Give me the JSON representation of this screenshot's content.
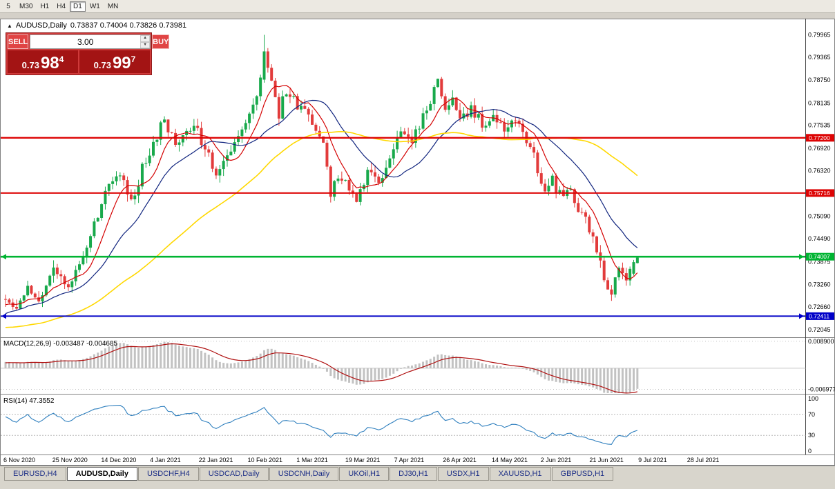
{
  "toolbar": {
    "timeframes": [
      "5",
      "M30",
      "H1",
      "H4",
      "D1",
      "W1",
      "MN"
    ],
    "active_timeframe": "D1"
  },
  "chart": {
    "title": {
      "icon_glyph": "▲",
      "symbol": "AUDUSD,Daily",
      "ohlc": "0.73837 0.74004 0.73826 0.73981"
    },
    "trade_panel": {
      "sell_label": "SELL",
      "buy_label": "BUY",
      "volume": "3.00",
      "spinner_up_glyph": "▲",
      "spinner_down_glyph": "▼",
      "sell_price": {
        "base": "0.73",
        "big": "98",
        "pip": "4"
      },
      "buy_price": {
        "base": "0.73",
        "big": "99",
        "pip": "7"
      }
    },
    "y_axis_labels": [
      "0.79965",
      "0.79365",
      "0.78750",
      "0.78135",
      "0.77535",
      "0.76920",
      "0.76320",
      "0.75705",
      "0.75090",
      "0.74490",
      "0.73875",
      "0.73260",
      "0.72660",
      "0.72045"
    ],
    "x_axis_labels": [
      "6 Nov 2020",
      "25 Nov 2020",
      "14 Dec 2020",
      "4 Jan 2021",
      "22 Jan 2021",
      "10 Feb 2021",
      "1 Mar 2021",
      "19 Mar 2021",
      "7 Apr 2021",
      "26 Apr 2021",
      "14 May 2021",
      "2 Jun 2021",
      "21 Jun 2021",
      "9 Jul 2021",
      "28 Jul 2021"
    ],
    "levels": [
      {
        "label": "0.77200",
        "price": 0.772,
        "color": "#dd0404",
        "width": 2.4,
        "arrows": false
      },
      {
        "label": "0.75716",
        "price": 0.75716,
        "color": "#dd0404",
        "width": 2,
        "arrows": false
      },
      {
        "label": "0.74007",
        "price": 0.74007,
        "color": "#00b432",
        "width": 2.6,
        "arrows": true
      },
      {
        "label": "0.72411",
        "price": 0.72411,
        "color": "#0000c8",
        "width": 2,
        "arrows": true
      }
    ],
    "chart_data": {
      "type": "candlestick",
      "symbol": "AUDUSD",
      "timeframe": "Daily",
      "bar_count": 172,
      "ylim": [
        0.7182,
        0.804
      ],
      "ohlc_current": {
        "open": 0.73837,
        "high": 0.74004,
        "low": 0.73826,
        "close": 0.73981
      },
      "up_color": "#18a94b",
      "down_color": "#e23b3b",
      "prehistory_anchors": [
        [
          -60,
          0.726
        ],
        [
          -45,
          0.72
        ],
        [
          -30,
          0.716
        ],
        [
          -15,
          0.723
        ],
        [
          -1,
          0.7278
        ]
      ],
      "price_anchors": [
        [
          0,
          0.729
        ],
        [
          3,
          0.7262
        ],
        [
          6,
          0.7312
        ],
        [
          9,
          0.728
        ],
        [
          13,
          0.7368
        ],
        [
          17,
          0.7332
        ],
        [
          21,
          0.7405
        ],
        [
          25,
          0.752
        ],
        [
          28,
          0.759
        ],
        [
          31,
          0.7625
        ],
        [
          34,
          0.7538
        ],
        [
          37,
          0.764
        ],
        [
          40,
          0.7712
        ],
        [
          43,
          0.777
        ],
        [
          46,
          0.7706
        ],
        [
          49,
          0.7752
        ],
        [
          52,
          0.7736
        ],
        [
          55,
          0.7665
        ],
        [
          57,
          0.7608
        ],
        [
          60,
          0.7682
        ],
        [
          63,
          0.7735
        ],
        [
          65,
          0.7752
        ],
        [
          67,
          0.78
        ],
        [
          69,
          0.7892
        ],
        [
          70,
          0.7955
        ],
        [
          71,
          0.7908
        ],
        [
          72,
          0.7872
        ],
        [
          74,
          0.7788
        ],
        [
          76,
          0.7846
        ],
        [
          78,
          0.7822
        ],
        [
          80,
          0.7796
        ],
        [
          82,
          0.7772
        ],
        [
          84,
          0.7746
        ],
        [
          86,
          0.7692
        ],
        [
          88,
          0.7578
        ],
        [
          90,
          0.7625
        ],
        [
          92,
          0.7592
        ],
        [
          95,
          0.7552
        ],
        [
          98,
          0.7618
        ],
        [
          101,
          0.7596
        ],
        [
          104,
          0.7665
        ],
        [
          107,
          0.773
        ],
        [
          110,
          0.7716
        ],
        [
          112,
          0.7756
        ],
        [
          114,
          0.78
        ],
        [
          116,
          0.785
        ],
        [
          117,
          0.7868
        ],
        [
          119,
          0.7796
        ],
        [
          121,
          0.7818
        ],
        [
          123,
          0.7774
        ],
        [
          126,
          0.7792
        ],
        [
          129,
          0.7758
        ],
        [
          132,
          0.7782
        ],
        [
          135,
          0.7744
        ],
        [
          138,
          0.7762
        ],
        [
          140,
          0.7746
        ],
        [
          142,
          0.7696
        ],
        [
          144,
          0.7636
        ],
        [
          146,
          0.7586
        ],
        [
          148,
          0.7612
        ],
        [
          150,
          0.7566
        ],
        [
          152,
          0.7592
        ],
        [
          154,
          0.7542
        ],
        [
          156,
          0.7512
        ],
        [
          158,
          0.7472
        ],
        [
          160,
          0.7416
        ],
        [
          161,
          0.7382
        ],
        [
          162,
          0.7332
        ],
        [
          163,
          0.7296
        ],
        [
          164,
          0.7312
        ],
        [
          165,
          0.7356
        ],
        [
          166,
          0.7372
        ],
        [
          167,
          0.7342
        ],
        [
          168,
          0.7332
        ],
        [
          169,
          0.7362
        ],
        [
          170,
          0.7385
        ],
        [
          171,
          0.73981
        ]
      ],
      "bar_overrides": [
        {
          "i": 70,
          "o": 0.7876,
          "h": 0.79965,
          "l": 0.7868,
          "c": 0.7952
        },
        {
          "i": 71,
          "o": 0.7952,
          "h": 0.7961,
          "l": 0.7895,
          "c": 0.7908
        },
        {
          "i": 170,
          "o": 0.7355,
          "h": 0.7392,
          "l": 0.735,
          "c": 0.7386
        },
        {
          "i": 171,
          "o": 0.73837,
          "h": 0.74004,
          "l": 0.73826,
          "c": 0.73981
        }
      ],
      "moving_averages": [
        {
          "name": "MA-fast",
          "period": 8,
          "color": "#d40000"
        },
        {
          "name": "MA-mid",
          "period": 20,
          "color": "#10247e"
        },
        {
          "name": "MA-slow",
          "period": 55,
          "color": "#ffd800"
        }
      ]
    }
  },
  "macd": {
    "label": "MACD(12,26,9) -0.003487 -0.004685",
    "params": "12,26,9",
    "value": -0.003487,
    "signal_value": -0.004685,
    "axis_labels": [
      "0.008900",
      "-0.006977"
    ],
    "axis_values": [
      0.0089,
      -0.006977
    ],
    "histogram_color": "#c2c2c2",
    "signal_color": "#b01010"
  },
  "rsi": {
    "label": "RSI(14) 47.3552",
    "period": 14,
    "value": 47.3552,
    "axis_labels": [
      "100",
      "70",
      "30",
      "0"
    ],
    "axis_values": [
      100,
      70,
      30,
      0
    ],
    "guide_levels": [
      70,
      30
    ],
    "line_color": "#2e7fbe"
  },
  "tabs": {
    "items": [
      "EURUSD,H4",
      "AUDUSD,Daily",
      "USDCHF,H4",
      "USDCAD,Daily",
      "USDCNH,Daily",
      "UKOil,H1",
      "DJ30,H1",
      "USDX,H1",
      "XAUUSD,H1",
      "GBPUSD,H1"
    ],
    "active_index": 1
  }
}
